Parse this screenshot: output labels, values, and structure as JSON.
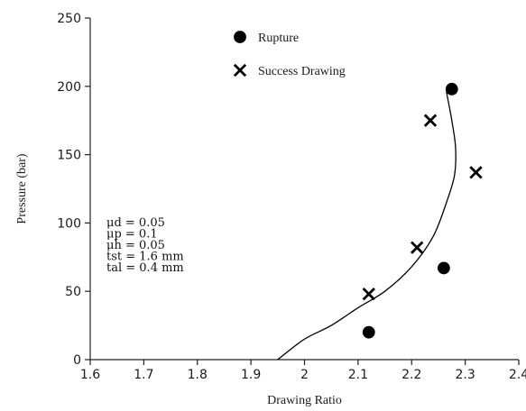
{
  "chart_data": {
    "type": "scatter",
    "title": "",
    "xlabel": "Drawing Ratio",
    "ylabel": "Pressure (bar)",
    "xlim": [
      1.6,
      2.4
    ],
    "ylim": [
      0,
      250
    ],
    "x_ticks": [
      1.6,
      1.7,
      1.8,
      1.9,
      2.0,
      2.1,
      2.2,
      2.3,
      2.4
    ],
    "x_tick_labels": [
      "1.6",
      "1.7",
      "1.8",
      "1.9",
      "2",
      "2.1",
      "2.2",
      "2.3",
      "2.4"
    ],
    "y_ticks": [
      0,
      50,
      100,
      150,
      200,
      250
    ],
    "y_tick_labels": [
      "0",
      "50",
      "100",
      "150",
      "200",
      "250"
    ],
    "grid": false,
    "legend_position": "top-center",
    "series": [
      {
        "name": "Rupture",
        "marker": "circle",
        "color": "#000000",
        "points": [
          {
            "x": 2.12,
            "y": 20
          },
          {
            "x": 2.26,
            "y": 67
          },
          {
            "x": 2.275,
            "y": 198
          }
        ]
      },
      {
        "name": "Success Drawing",
        "marker": "x",
        "color": "#000000",
        "points": [
          {
            "x": 2.12,
            "y": 48
          },
          {
            "x": 2.21,
            "y": 82
          },
          {
            "x": 2.235,
            "y": 175
          },
          {
            "x": 2.32,
            "y": 137
          }
        ]
      }
    ],
    "boundary_curve": {
      "color": "#000000",
      "points": [
        {
          "x": 1.95,
          "y": 0
        },
        {
          "x": 2.0,
          "y": 15
        },
        {
          "x": 2.05,
          "y": 25
        },
        {
          "x": 2.1,
          "y": 38
        },
        {
          "x": 2.15,
          "y": 50
        },
        {
          "x": 2.2,
          "y": 68
        },
        {
          "x": 2.24,
          "y": 90
        },
        {
          "x": 2.265,
          "y": 115
        },
        {
          "x": 2.28,
          "y": 135
        },
        {
          "x": 2.282,
          "y": 155
        },
        {
          "x": 2.275,
          "y": 175
        },
        {
          "x": 2.265,
          "y": 196
        }
      ]
    },
    "annotation_lines": [
      "μd = 0.05",
      "μp = 0.1",
      "μh = 0.05",
      "tst = 1.6 mm",
      "tal = 0.4 mm"
    ]
  }
}
